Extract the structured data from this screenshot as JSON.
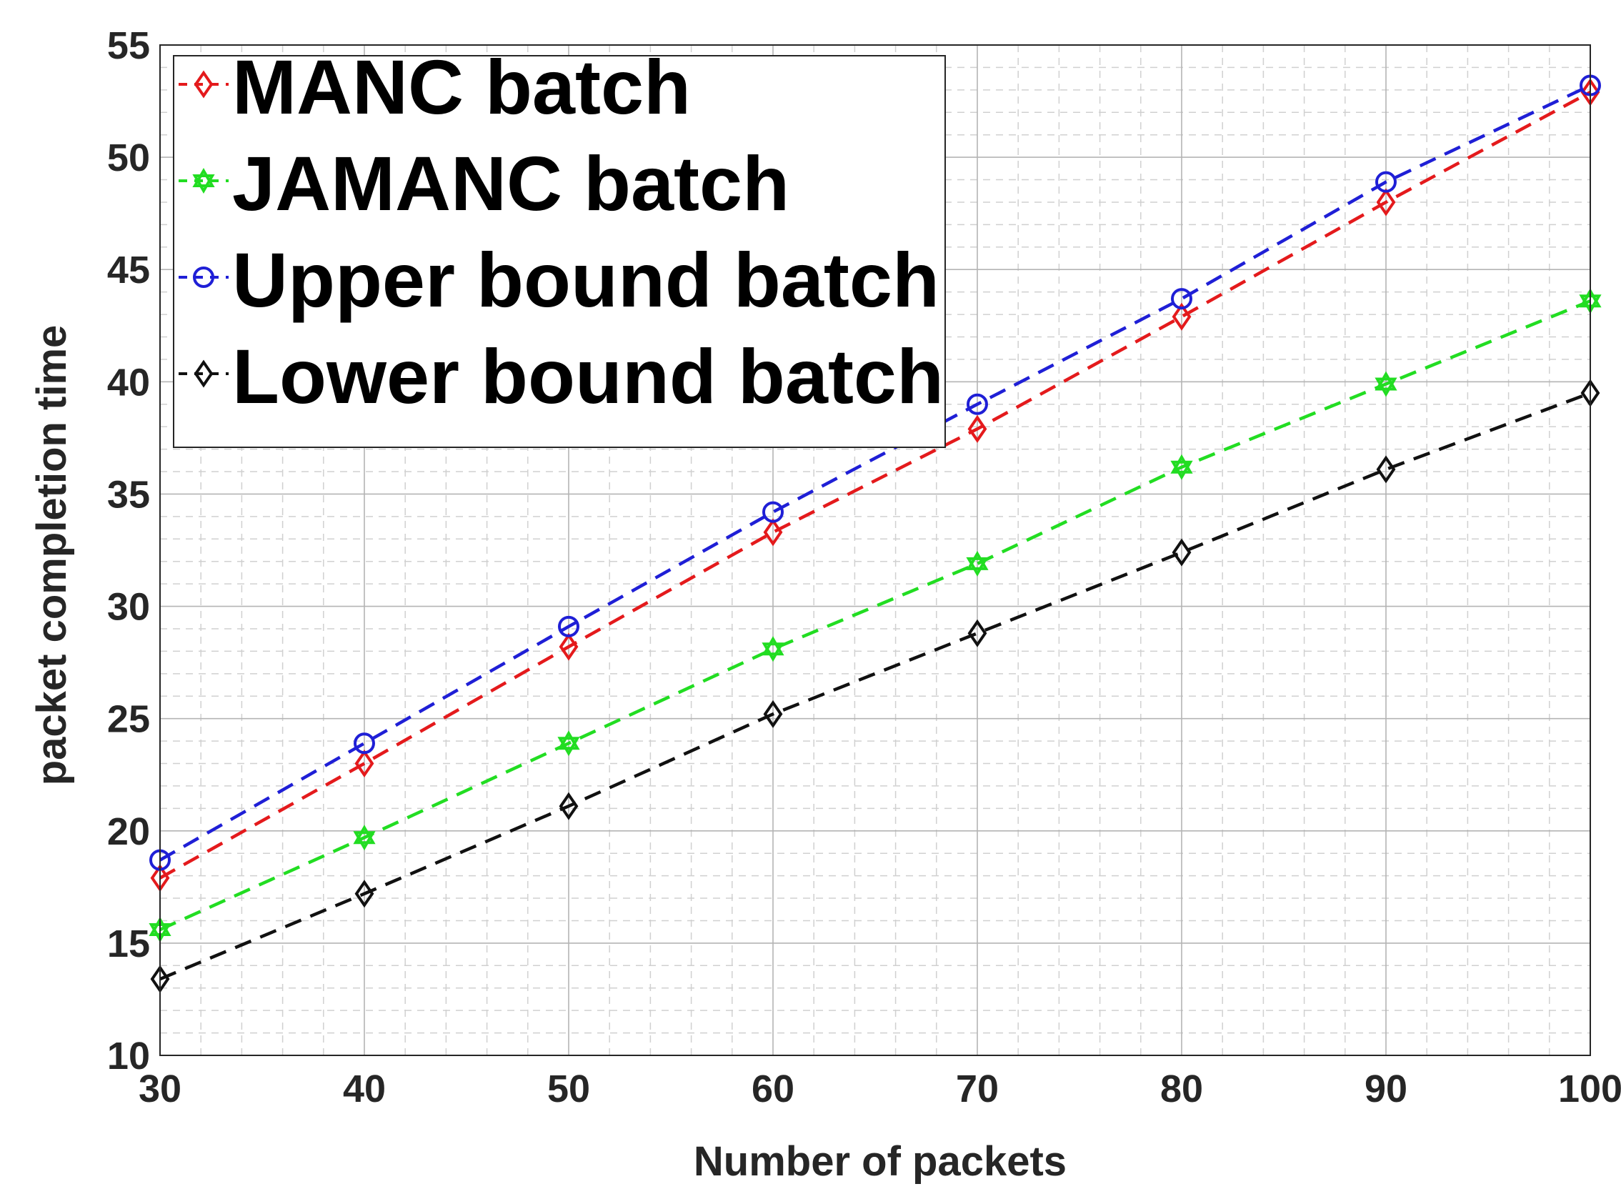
{
  "chart_data": {
    "type": "line",
    "title": "",
    "xlabel": "Number of packets",
    "ylabel": "packet completion time",
    "xlim": [
      30,
      100
    ],
    "ylim": [
      10,
      55
    ],
    "xticks": [
      30,
      40,
      50,
      60,
      70,
      80,
      90,
      100
    ],
    "yticks": [
      10,
      15,
      20,
      25,
      30,
      35,
      40,
      45,
      50,
      55
    ],
    "grid": true,
    "minor_grid": true,
    "legend_position": "top-left",
    "x": [
      30,
      40,
      50,
      60,
      70,
      80,
      90,
      100
    ],
    "series": [
      {
        "name": "MANC batch",
        "color": "#e41a1c",
        "marker": "diamond",
        "line_style": "dashed",
        "values": [
          17.9,
          23.0,
          28.2,
          33.3,
          37.9,
          42.9,
          48.0,
          52.9
        ]
      },
      {
        "name": "JAMANC batch",
        "color": "#22dd22",
        "marker": "hexagram",
        "line_style": "dashed",
        "values": [
          15.6,
          19.7,
          23.9,
          28.1,
          31.9,
          36.2,
          39.9,
          43.6
        ]
      },
      {
        "name": "Upper bound batch",
        "color": "#1f1fd6",
        "marker": "circle",
        "line_style": "dashed",
        "values": [
          18.7,
          23.9,
          29.1,
          34.2,
          39.0,
          43.7,
          48.9,
          53.2
        ]
      },
      {
        "name": "Lower bound batch",
        "color": "#111111",
        "marker": "diamond",
        "line_style": "dashed",
        "values": [
          13.4,
          17.2,
          21.1,
          25.2,
          28.8,
          32.4,
          36.1,
          39.5
        ]
      }
    ]
  }
}
